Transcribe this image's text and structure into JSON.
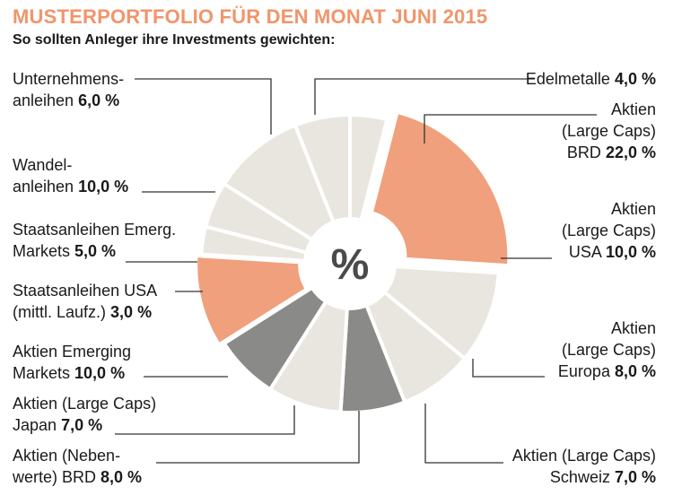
{
  "header": {
    "title": "MUSTERPORTFOLIO FÜR DEN MONAT JUNI 2015",
    "subtitle": "So sollten Anleger ihre Investments gewichten:"
  },
  "center_label": "%",
  "colors": {
    "title": "#f0956b",
    "accent": "#f0a07c",
    "light": "#e8e6df",
    "dark": "#8a8a88",
    "separator": "#ffffff",
    "leader": "#333333"
  },
  "chart_data": {
    "type": "pie",
    "variant": "donut",
    "title": "MUSTERPORTFOLIO FÜR DEN MONAT JUNI 2015",
    "subtitle": "So sollten Anleger ihre Investments gewichten:",
    "unit": "%",
    "slices": [
      {
        "label": "Edelmetalle",
        "value": 4.0,
        "value_text": "4,0 %",
        "color": "light"
      },
      {
        "label": "Aktien (Large Caps) BRD",
        "value": 22.0,
        "value_text": "22,0 %",
        "color": "accent"
      },
      {
        "label": "Aktien (Large Caps) USA",
        "value": 10.0,
        "value_text": "10,0 %",
        "color": "light"
      },
      {
        "label": "Aktien (Large Caps) Europa",
        "value": 8.0,
        "value_text": "8,0 %",
        "color": "light"
      },
      {
        "label": "Aktien (Large Caps) Schweiz",
        "value": 7.0,
        "value_text": "7,0 %",
        "color": "dark"
      },
      {
        "label": "Aktien (Nebenwerte) BRD",
        "value": 8.0,
        "value_text": "8,0 %",
        "color": "light"
      },
      {
        "label": "Aktien (Large Caps) Japan",
        "value": 7.0,
        "value_text": "7,0 %",
        "color": "dark"
      },
      {
        "label": "Aktien Emerging Markets",
        "value": 10.0,
        "value_text": "10,0 %",
        "color": "accent"
      },
      {
        "label": "Staatsanleihen USA (mittl. Laufz.)",
        "value": 3.0,
        "value_text": "3,0 %",
        "color": "light"
      },
      {
        "label": "Staatsanleihen Emerg. Markets",
        "value": 5.0,
        "value_text": "5,0 %",
        "color": "light"
      },
      {
        "label": "Wandelanleihen",
        "value": 10.0,
        "value_text": "10,0 %",
        "color": "light"
      },
      {
        "label": "Unternehmensanleihen",
        "value": 6.0,
        "value_text": "6,0 %",
        "color": "light"
      }
    ]
  },
  "labels": [
    {
      "lines": [
        "Edelmetalle"
      ],
      "value": "4,0 %"
    },
    {
      "lines": [
        "Aktien",
        "(Large Caps)",
        "BRD"
      ],
      "value": "22,0 %"
    },
    {
      "lines": [
        "Aktien",
        "(Large Caps)",
        "USA"
      ],
      "value": "10,0 %"
    },
    {
      "lines": [
        "Aktien",
        "(Large Caps)",
        "Europa"
      ],
      "value": "8,0 %"
    },
    {
      "lines": [
        "Aktien (Large Caps)",
        "Schweiz"
      ],
      "value": "7,0 %"
    },
    {
      "lines": [
        "Aktien (Neben-",
        "werte) BRD"
      ],
      "value": "8,0 %"
    },
    {
      "lines": [
        "Aktien (Large Caps)",
        "Japan"
      ],
      "value": "7,0 %"
    },
    {
      "lines": [
        "Aktien Emerging",
        "Markets"
      ],
      "value": "10,0 %"
    },
    {
      "lines": [
        "Staatsanleihen USA",
        "(mittl. Laufz.)"
      ],
      "value": "3,0 %"
    },
    {
      "lines": [
        "Staatsanleihen Emerg.",
        "Markets"
      ],
      "value": "5,0 %"
    },
    {
      "lines": [
        "Wandel-",
        "anleihen"
      ],
      "value": "10,0 %"
    },
    {
      "lines": [
        "Unternehmens-",
        "anleihen"
      ],
      "value": "6,0 %"
    }
  ]
}
